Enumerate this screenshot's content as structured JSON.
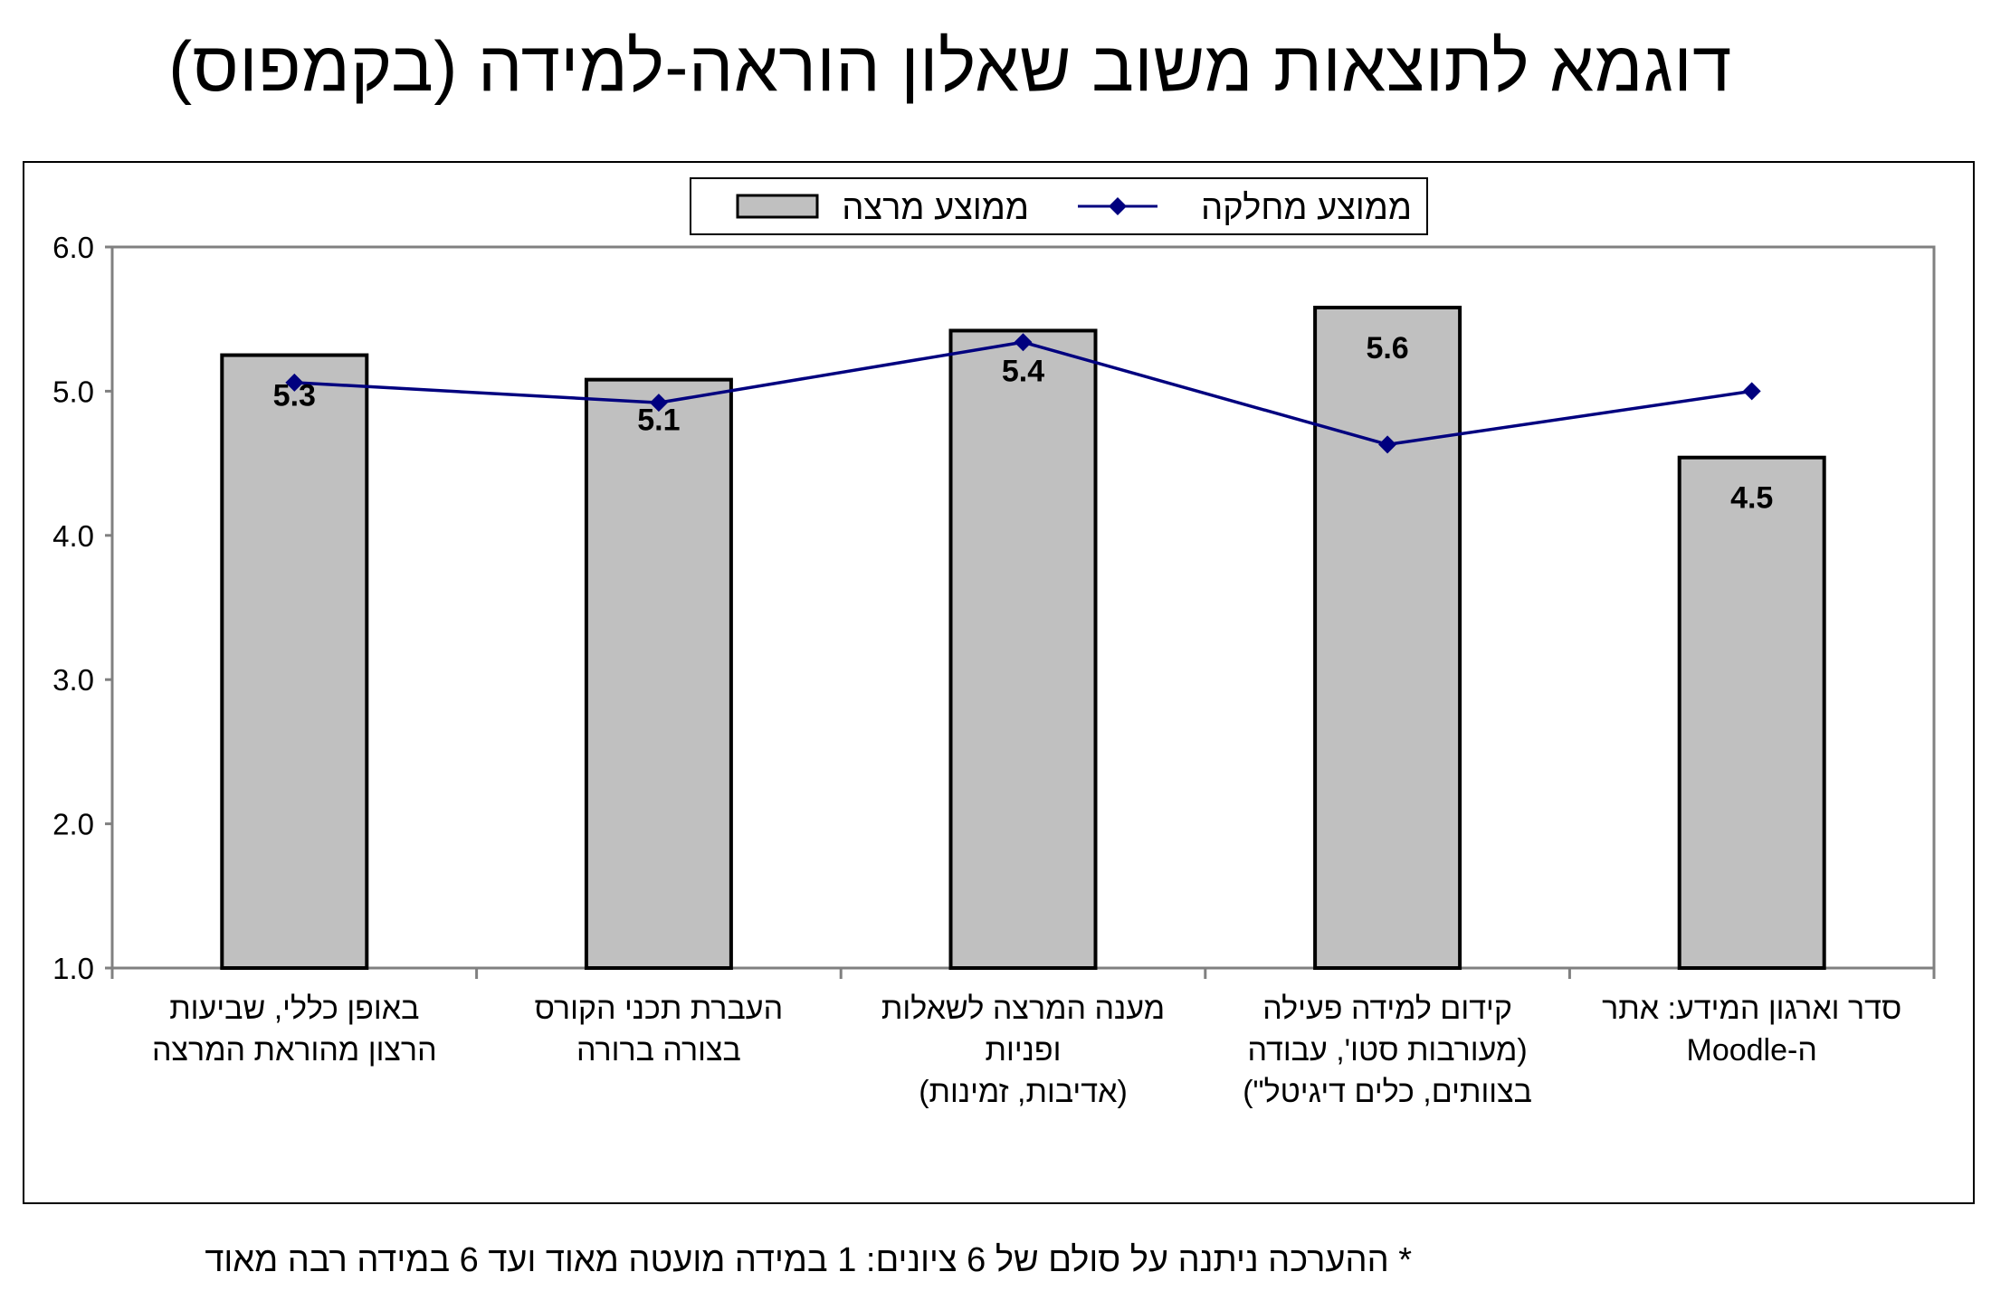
{
  "page": {
    "title": "דוגמא לתוצאות משוב שאלון הוראה-למידה (בקמפוס)",
    "footnote": "* ההערכה ניתנה על סולם של 6 ציונים: 1 במידה מועטה מאוד ועד 6 במידה רבה מאוד"
  },
  "colors": {
    "bar_fill": "#c0c0c0",
    "bar_stroke": "#000000",
    "line": "#00007f",
    "marker": "#00007f",
    "axis": "#808080"
  },
  "chart_data": {
    "type": "bar",
    "title": "דוגמא לתוצאות משוב שאלון הוראה-למידה (בקמפוס)",
    "categories": [
      [
        "באופן כללי, שביעות",
        "הרצון מהוראת המרצה"
      ],
      [
        "העברת תכני הקורס",
        "בצורה ברורה"
      ],
      [
        "מענה המרצה לשאלות",
        "ופניות",
        "(אדיבות, זמינות)"
      ],
      [
        "קידום למידה פעילה",
        "(מעורבות סטו', עבודה",
        "בצוותים, כלים דיגיטל\")"
      ],
      [
        "סדר וארגון המידע: אתר",
        "ה-Moodle"
      ]
    ],
    "series": [
      {
        "name": "ממוצע מרצה",
        "kind": "bar",
        "values": [
          5.25,
          5.08,
          5.42,
          5.58,
          4.54
        ],
        "labels": [
          "5.3",
          "5.1",
          "5.4",
          "5.6",
          "4.5"
        ]
      },
      {
        "name": "ממוצע מחלקה",
        "kind": "line",
        "marker": "diamond",
        "values": [
          5.06,
          4.92,
          5.34,
          4.63,
          5.0
        ]
      }
    ],
    "ylim": [
      1.0,
      6.0
    ],
    "yticks": [
      "1.0",
      "2.0",
      "3.0",
      "4.0",
      "5.0",
      "6.0"
    ],
    "xlabel": "",
    "ylabel": "",
    "grid": false,
    "legend_position": "top-center"
  }
}
